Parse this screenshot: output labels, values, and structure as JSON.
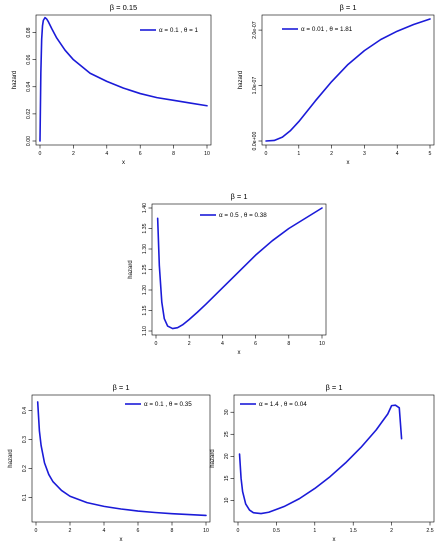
{
  "chart_data": [
    {
      "type": "line",
      "title": "β = 0.15",
      "xlabel": "x",
      "ylabel": "hazard",
      "xlim": [
        0,
        10
      ],
      "ylim": [
        0,
        0.09
      ],
      "xticks": [
        0,
        2,
        4,
        6,
        8,
        10
      ],
      "yticks": [
        0,
        0.02,
        0.04,
        0.06,
        0.08
      ],
      "ytick_labels": [
        "0.00",
        "0.02",
        "0.04",
        "0.06",
        "0.08"
      ],
      "legend_loc": "top-right",
      "series": [
        {
          "name": "α = 0.1 , θ = 1",
          "x": [
            0,
            0.05,
            0.1,
            0.15,
            0.2,
            0.3,
            0.4,
            0.5,
            0.7,
            1,
            1.5,
            2,
            3,
            4,
            5,
            6,
            7,
            8,
            9,
            10
          ],
          "y": [
            0,
            0.05,
            0.075,
            0.085,
            0.089,
            0.091,
            0.09,
            0.088,
            0.083,
            0.076,
            0.067,
            0.06,
            0.05,
            0.044,
            0.039,
            0.035,
            0.032,
            0.03,
            0.028,
            0.026
          ]
        }
      ]
    },
    {
      "type": "line",
      "title": "β = 1",
      "xlabel": "x",
      "ylabel": "hazard",
      "xlim": [
        0,
        5
      ],
      "ylim": [
        0,
        2.2e-07
      ],
      "xticks": [
        0,
        1,
        2,
        3,
        4,
        5
      ],
      "yticks": [
        0,
        1e-07,
        2e-07
      ],
      "ytick_labels": [
        "0.0e+00",
        "1.0e-07",
        "2.0e-07"
      ],
      "legend_loc": "top-right",
      "series": [
        {
          "name": "α = 0.01 , θ = 1.81",
          "x": [
            0,
            0.25,
            0.5,
            0.75,
            1,
            1.5,
            2,
            2.5,
            3,
            3.5,
            4,
            4.5,
            5
          ],
          "y": [
            0,
            1e-09,
            7e-09,
            1.9e-08,
            3.5e-08,
            7.2e-08,
            1.07e-07,
            1.38e-07,
            1.63e-07,
            1.83e-07,
            1.98e-07,
            2.1e-07,
            2.2e-07
          ]
        }
      ]
    },
    {
      "type": "line",
      "title": "β = 1",
      "xlabel": "x",
      "ylabel": "hazard",
      "xlim": [
        0,
        10
      ],
      "ylim": [
        1.1,
        1.4
      ],
      "xticks": [
        0,
        2,
        4,
        6,
        8,
        10
      ],
      "yticks": [
        1.1,
        1.15,
        1.2,
        1.25,
        1.3,
        1.35,
        1.4
      ],
      "ytick_labels": [
        "1.10",
        "1.15",
        "1.20",
        "1.25",
        "1.30",
        "1.35",
        "1.40"
      ],
      "legend_loc": "top-center",
      "series": [
        {
          "name": "α = 0.5 , θ = 0.38",
          "x": [
            0.1,
            0.2,
            0.35,
            0.5,
            0.7,
            1,
            1.3,
            1.6,
            2,
            2.5,
            3,
            4,
            5,
            6,
            7,
            8,
            9,
            10
          ],
          "y": [
            1.375,
            1.26,
            1.17,
            1.13,
            1.112,
            1.106,
            1.108,
            1.115,
            1.128,
            1.146,
            1.165,
            1.205,
            1.245,
            1.285,
            1.32,
            1.35,
            1.375,
            1.4
          ]
        }
      ]
    },
    {
      "type": "line",
      "title": "β = 1",
      "xlabel": "x",
      "ylabel": "hazard",
      "xlim": [
        0,
        10
      ],
      "ylim": [
        0.03,
        0.44
      ],
      "xticks": [
        0,
        2,
        4,
        6,
        8,
        10
      ],
      "yticks": [
        0.1,
        0.2,
        0.3,
        0.4
      ],
      "ytick_labels": [
        "0.1",
        "0.2",
        "0.3",
        "0.4"
      ],
      "legend_loc": "top-right",
      "series": [
        {
          "name": "α = 0.1 , θ = 0.35",
          "x": [
            0.1,
            0.2,
            0.3,
            0.5,
            0.75,
            1,
            1.5,
            2,
            3,
            4,
            5,
            6,
            7,
            8,
            9,
            10
          ],
          "y": [
            0.43,
            0.33,
            0.28,
            0.22,
            0.18,
            0.155,
            0.125,
            0.105,
            0.083,
            0.07,
            0.061,
            0.054,
            0.049,
            0.045,
            0.042,
            0.039
          ]
        }
      ]
    },
    {
      "type": "line",
      "title": "β = 1",
      "xlabel": "x",
      "ylabel": "hazard",
      "xlim": [
        0,
        2.5
      ],
      "ylim": [
        6,
        33
      ],
      "xticks": [
        0,
        0.5,
        1,
        1.5,
        2,
        2.5
      ],
      "ytick_labels": [
        "10",
        "15",
        "20",
        "25",
        "30"
      ],
      "yticks": [
        10,
        15,
        20,
        25,
        30
      ],
      "legend_loc": "top-left",
      "series": [
        {
          "name": "α = 1.4 , θ = 0.04",
          "x": [
            0.02,
            0.04,
            0.06,
            0.1,
            0.15,
            0.2,
            0.3,
            0.4,
            0.6,
            0.8,
            1,
            1.2,
            1.4,
            1.6,
            1.8,
            1.95,
            2.0,
            2.05,
            2.1,
            2.13
          ],
          "y": [
            20.5,
            15,
            12,
            9.2,
            7.8,
            7.2,
            7.0,
            7.3,
            8.6,
            10.4,
            12.7,
            15.4,
            18.5,
            22.0,
            26.0,
            29.6,
            31.5,
            31.6,
            31.0,
            24
          ]
        }
      ]
    }
  ]
}
